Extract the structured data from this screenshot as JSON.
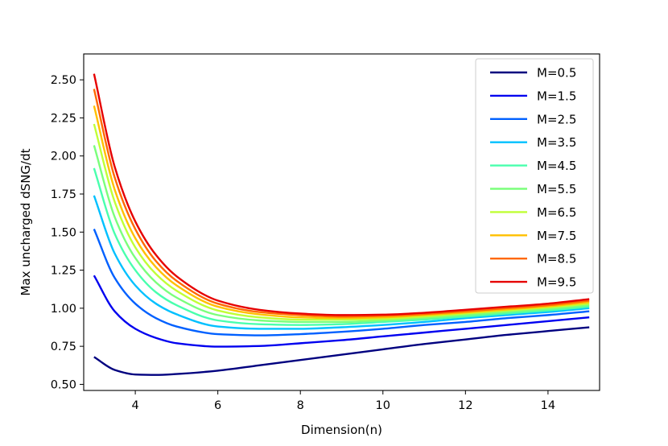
{
  "chart_data": {
    "type": "line",
    "title": "",
    "xlabel": "Dimension(n)",
    "ylabel": "Max uncharged dSNG/dt",
    "xlim": [
      2.75,
      15.25
    ],
    "ylim": [
      0.46,
      2.67
    ],
    "xticks": [
      4,
      6,
      8,
      10,
      12,
      14
    ],
    "xtick_labels": [
      "4",
      "6",
      "8",
      "10",
      "12",
      "14"
    ],
    "yticks": [
      0.5,
      0.75,
      1.0,
      1.25,
      1.5,
      1.75,
      2.0,
      2.25,
      2.5
    ],
    "ytick_labels": [
      "0.50",
      "0.75",
      "1.00",
      "1.25",
      "1.50",
      "1.75",
      "2.00",
      "2.25",
      "2.50"
    ],
    "grid": false,
    "legend_position": "top-right",
    "x": [
      3,
      3.5,
      4,
      4.5,
      5,
      6,
      7,
      8,
      9,
      10,
      11,
      12,
      13,
      14,
      15
    ],
    "series": [
      {
        "name": "M=0.5",
        "color": "#00007f",
        "values": [
          0.68,
          0.595,
          0.565,
          0.562,
          0.568,
          0.59,
          0.625,
          0.66,
          0.695,
          0.73,
          0.765,
          0.795,
          0.825,
          0.85,
          0.875
        ]
      },
      {
        "name": "M=1.5",
        "color": "#0000ef",
        "values": [
          1.215,
          0.98,
          0.865,
          0.805,
          0.77,
          0.748,
          0.752,
          0.77,
          0.79,
          0.815,
          0.84,
          0.865,
          0.89,
          0.915,
          0.94
        ]
      },
      {
        "name": "M=2.5",
        "color": "#0060ff",
        "values": [
          1.52,
          1.2,
          1.03,
          0.935,
          0.88,
          0.83,
          0.822,
          0.83,
          0.845,
          0.865,
          0.89,
          0.91,
          0.935,
          0.955,
          0.98
        ]
      },
      {
        "name": "M=3.5",
        "color": "#00c0ff",
        "values": [
          1.74,
          1.36,
          1.15,
          1.03,
          0.96,
          0.88,
          0.865,
          0.865,
          0.875,
          0.89,
          0.91,
          0.935,
          0.955,
          0.975,
          1.0
        ]
      },
      {
        "name": "M=4.5",
        "color": "#49ffad",
        "values": [
          1.92,
          1.49,
          1.25,
          1.105,
          1.02,
          0.92,
          0.895,
          0.89,
          0.895,
          0.91,
          0.925,
          0.945,
          0.965,
          0.985,
          1.01
        ]
      },
      {
        "name": "M=5.5",
        "color": "#7bff7b",
        "values": [
          2.07,
          1.6,
          1.33,
          1.17,
          1.07,
          0.955,
          0.92,
          0.91,
          0.91,
          0.92,
          0.935,
          0.955,
          0.975,
          0.995,
          1.02
        ]
      },
      {
        "name": "M=6.5",
        "color": "#c0ff36",
        "values": [
          2.21,
          1.7,
          1.4,
          1.225,
          1.115,
          0.985,
          0.94,
          0.925,
          0.925,
          0.93,
          0.945,
          0.965,
          0.985,
          1.005,
          1.03
        ]
      },
      {
        "name": "M=7.5",
        "color": "#ffc000",
        "values": [
          2.33,
          1.78,
          1.46,
          1.27,
          1.15,
          1.01,
          0.96,
          0.94,
          0.935,
          0.94,
          0.955,
          0.972,
          0.992,
          1.012,
          1.04
        ]
      },
      {
        "name": "M=8.5",
        "color": "#ff6800",
        "values": [
          2.44,
          1.86,
          1.52,
          1.31,
          1.18,
          1.03,
          0.975,
          0.955,
          0.945,
          0.95,
          0.962,
          0.98,
          1.0,
          1.02,
          1.05
        ]
      },
      {
        "name": "M=9.5",
        "color": "#e60000",
        "values": [
          2.54,
          1.93,
          1.57,
          1.35,
          1.21,
          1.05,
          0.99,
          0.965,
          0.955,
          0.958,
          0.97,
          0.99,
          1.01,
          1.03,
          1.06
        ]
      }
    ]
  }
}
